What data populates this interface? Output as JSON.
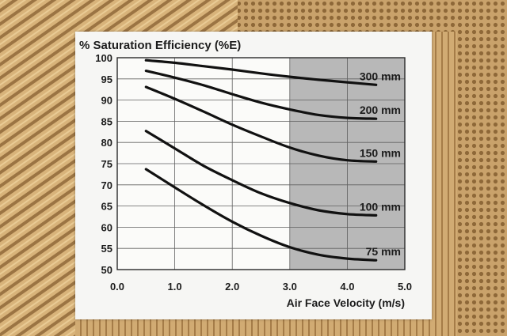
{
  "chart_data": {
    "type": "line",
    "title": "% Saturation Efficiency (%E)",
    "xlabel": "Air Face Velocity (m/s)",
    "ylabel": "",
    "xlim": [
      0.0,
      5.0
    ],
    "ylim": [
      50,
      100
    ],
    "x_ticks": [
      "0.0",
      "1.0",
      "2.0",
      "3.0",
      "4.0",
      "5.0"
    ],
    "y_ticks": [
      "50",
      "55",
      "60",
      "65",
      "70",
      "75",
      "80",
      "85",
      "90",
      "95",
      "100"
    ],
    "grid": true,
    "shaded_region": {
      "x_from": 3.0,
      "x_to": 5.0,
      "color": "#b8b8b8"
    },
    "line_color": "#111111",
    "series": [
      {
        "name": "300 mm",
        "x": [
          0.5,
          1.0,
          1.5,
          2.0,
          2.5,
          3.0,
          3.5,
          4.0,
          4.5
        ],
        "values": [
          99.4,
          98.8,
          98.0,
          97.2,
          96.3,
          95.5,
          94.8,
          94.2,
          93.6
        ]
      },
      {
        "name": "200 mm",
        "x": [
          0.5,
          1.0,
          1.5,
          2.0,
          2.5,
          3.0,
          3.5,
          4.0,
          4.5
        ],
        "values": [
          96.9,
          95.3,
          93.5,
          91.4,
          89.4,
          87.8,
          86.5,
          85.8,
          85.6
        ]
      },
      {
        "name": "150 mm",
        "x": [
          0.5,
          1.0,
          1.5,
          2.0,
          2.5,
          3.0,
          3.5,
          4.0,
          4.5
        ],
        "values": [
          93.1,
          90.3,
          87.3,
          84.2,
          81.4,
          78.8,
          76.9,
          75.8,
          75.5
        ]
      },
      {
        "name": "100 mm",
        "x": [
          0.5,
          1.0,
          1.5,
          2.0,
          2.5,
          3.0,
          3.5,
          4.0,
          4.5
        ],
        "values": [
          82.7,
          78.6,
          74.5,
          71.1,
          68.0,
          65.7,
          64.0,
          63.1,
          62.8
        ]
      },
      {
        "name": "75 mm",
        "x": [
          0.5,
          1.0,
          1.5,
          2.0,
          2.5,
          3.0,
          3.5,
          4.0,
          4.5
        ],
        "values": [
          73.7,
          69.4,
          65.2,
          61.3,
          58.0,
          55.3,
          53.5,
          52.6,
          52.2
        ]
      }
    ]
  }
}
